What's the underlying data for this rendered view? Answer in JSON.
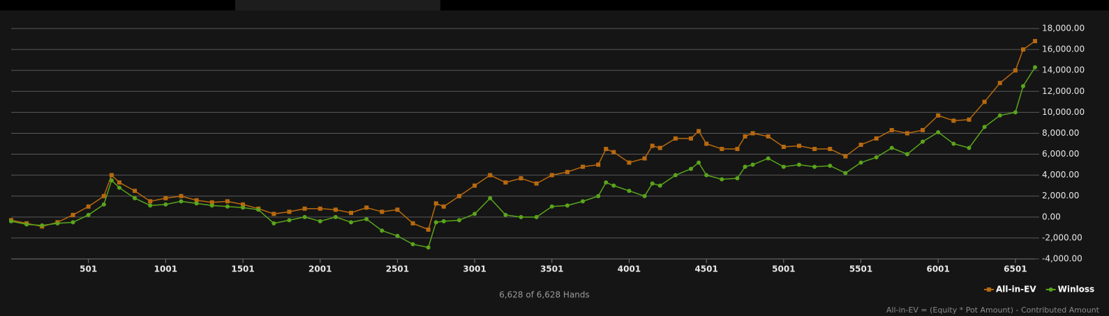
{
  "chart_data": {
    "type": "line",
    "x": [
      1,
      101,
      201,
      301,
      401,
      501,
      601,
      651,
      701,
      801,
      901,
      1001,
      1101,
      1201,
      1301,
      1401,
      1501,
      1601,
      1701,
      1801,
      1901,
      2001,
      2101,
      2201,
      2301,
      2401,
      2501,
      2601,
      2701,
      2751,
      2801,
      2901,
      3001,
      3101,
      3201,
      3301,
      3401,
      3501,
      3601,
      3701,
      3801,
      3851,
      3901,
      4001,
      4101,
      4151,
      4201,
      4301,
      4401,
      4451,
      4501,
      4601,
      4701,
      4751,
      4801,
      4901,
      5001,
      5101,
      5201,
      5301,
      5401,
      5501,
      5601,
      5701,
      5801,
      5901,
      6001,
      6101,
      6201,
      6301,
      6401,
      6501,
      6551,
      6628
    ],
    "series": [
      {
        "name": "All-in-EV",
        "color": "#b8690f",
        "marker": "square",
        "values": [
          -300,
          -600,
          -900,
          -500,
          200,
          1000,
          2000,
          4000,
          3300,
          2500,
          1500,
          1800,
          2000,
          1600,
          1400,
          1500,
          1200,
          800,
          300,
          500,
          800,
          800,
          700,
          400,
          900,
          500,
          700,
          -600,
          -1200,
          1300,
          1000,
          2000,
          3000,
          4000,
          3300,
          3700,
          3200,
          4000,
          4300,
          4800,
          5000,
          6500,
          6200,
          5200,
          5600,
          6800,
          6600,
          7500,
          7500,
          8200,
          7000,
          6500,
          6500,
          7700,
          8000,
          7700,
          6700,
          6800,
          6500,
          6500,
          5800,
          6900,
          7500,
          8300,
          8000,
          8300,
          9700,
          9200,
          9300,
          11000,
          12800,
          14000,
          16000,
          16800
        ]
      },
      {
        "name": "Winloss",
        "color": "#5aa51c",
        "marker": "circle",
        "values": [
          -400,
          -700,
          -800,
          -600,
          -500,
          200,
          1200,
          3500,
          2800,
          1800,
          1100,
          1200,
          1500,
          1300,
          1100,
          1000,
          900,
          700,
          -600,
          -300,
          0,
          -400,
          0,
          -500,
          -200,
          -1300,
          -1800,
          -2600,
          -2900,
          -500,
          -400,
          -300,
          300,
          1800,
          200,
          0,
          0,
          1000,
          1100,
          1500,
          2000,
          3300,
          3000,
          2500,
          2000,
          3200,
          3000,
          4000,
          4600,
          5200,
          4000,
          3600,
          3700,
          4800,
          5000,
          5600,
          4800,
          5000,
          4800,
          4900,
          4200,
          5200,
          5700,
          6600,
          6000,
          7200,
          8100,
          7000,
          6600,
          8600,
          9700,
          10000,
          12500,
          14300
        ]
      }
    ],
    "xlim": [
      1,
      6628
    ],
    "xticks": [
      501,
      1001,
      1501,
      2001,
      2501,
      3001,
      3501,
      4001,
      4501,
      5001,
      5501,
      6001,
      6501
    ],
    "ylim": [
      -4000,
      18000
    ],
    "yticks": [
      {
        "value": -4000,
        "label": "-4,000.00"
      },
      {
        "value": -2000,
        "label": "-2,000.00"
      },
      {
        "value": 0,
        "label": "0.00"
      },
      {
        "value": 2000,
        "label": "2,000.00"
      },
      {
        "value": 4000,
        "label": "4,000.00"
      },
      {
        "value": 6000,
        "label": "6,000.00"
      },
      {
        "value": 8000,
        "label": "8,000.00"
      },
      {
        "value": 10000,
        "label": "10,000.00"
      },
      {
        "value": 12000,
        "label": "12,000.00"
      },
      {
        "value": 14000,
        "label": "14,000.00"
      },
      {
        "value": 16000,
        "label": "16,000.00"
      },
      {
        "value": 18000,
        "label": "18,000.00"
      }
    ],
    "grid": true,
    "legend": "bottom-right",
    "hands_label": "6,628 of 6,628 Hands",
    "footnote": "All-in-EV = (Equity * Pot Amount) - Contributed Amount"
  }
}
